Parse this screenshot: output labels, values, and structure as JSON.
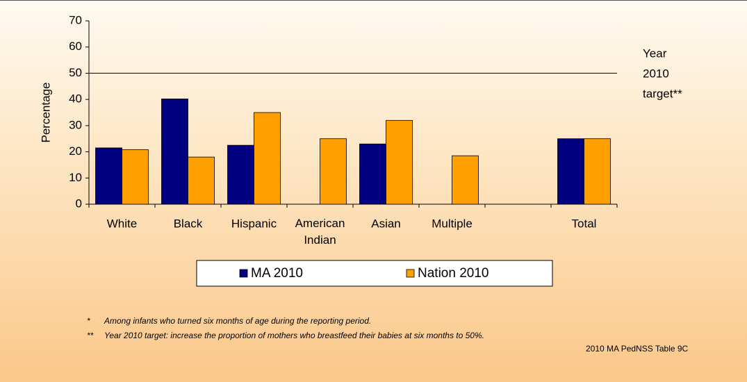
{
  "chart_data": {
    "type": "bar",
    "y_label": "Percentage",
    "categories": [
      "White",
      "Black",
      "Hispanic",
      "American Indian",
      "Asian",
      "Multiple",
      null,
      "Total"
    ],
    "series": [
      {
        "name": "MA 2010",
        "color": "#000080",
        "values": [
          21.5,
          40.2,
          22.5,
          null,
          23,
          null,
          null,
          25
        ]
      },
      {
        "name": "Nation 2010",
        "color": "#ffa000",
        "values": [
          20.8,
          18,
          35,
          25,
          32,
          18.5,
          null,
          25
        ]
      }
    ],
    "ylim": [
      0,
      70
    ],
    "yticks": [
      0,
      10,
      20,
      30,
      40,
      50,
      60,
      70
    ],
    "reference_line": 50,
    "reference_label": [
      "Year",
      "2010",
      "target**"
    ],
    "notes": [
      {
        "marker": "*",
        "text": "Among infants who turned six months of age during the reporting period."
      },
      {
        "marker": "**",
        "text": "Year 2010 target: increase the proportion of mothers who breastfeed their babies at six months to 50%."
      }
    ],
    "source": "2010 MA PedNSS Table 9C"
  }
}
